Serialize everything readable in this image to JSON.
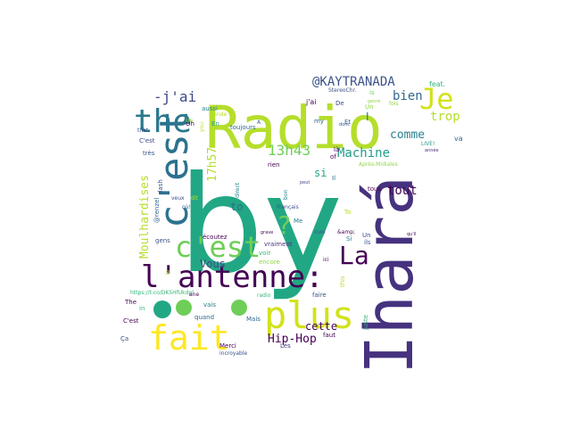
{
  "words": [
    {
      "text": "by",
      "color": "#22a784"
    },
    {
      "text": "Radio",
      "color": "#b5de2b"
    },
    {
      "text": "Ihará",
      "color": "#46327e"
    },
    {
      "text": "l'antenne:",
      "color": "#440154"
    },
    {
      "text": "plus",
      "color": "#d2e21b"
    },
    {
      "text": "c'est",
      "color": "#2c728e"
    },
    {
      "text": "the",
      "color": "#2a788e"
    },
    {
      "text": "fait",
      "color": "#fde725"
    },
    {
      "text": "c'est",
      "color": "#6ece58"
    },
    {
      "text": "Je",
      "color": "#d2e21b"
    },
    {
      "text": "La",
      "color": "#440154"
    },
    {
      "text": "?",
      "color": "#6ece58"
    },
    {
      "text": "-j'ai",
      "color": "#3e4989"
    },
    {
      "text": "@KAYTRANADA",
      "color": "#3b528b"
    },
    {
      "text": "bien",
      "color": "#31688e"
    },
    {
      "text": "trop",
      "color": "#b5de2b"
    },
    {
      "text": "13h43",
      "color": "#6ece58"
    },
    {
      "text": "Machine",
      "color": "#1f9e89"
    },
    {
      "text": "tout",
      "color": "#440154"
    },
    {
      "text": "comme",
      "color": "#26828e"
    },
    {
      "text": "Moulhardises",
      "color": "#b5de2b"
    },
    {
      "text": "17h57",
      "color": "#b5de2b"
    },
    {
      "text": "Vous",
      "color": "#3e4989"
    },
    {
      "text": "Hip-Hop",
      "color": "#440154"
    },
    {
      "text": "cette",
      "color": "#440154"
    },
    {
      "text": "to",
      "color": "#31688e"
    },
    {
      "text": "si",
      "color": "#22a784"
    },
    {
      "text": "I",
      "color": "#2a788e"
    },
    {
      "text": "feat.",
      "color": "#35b779"
    },
    {
      "text": "va",
      "color": "#31688e"
    },
    {
      "text": "j'ai",
      "color": "#440154"
    },
    {
      "text": "is",
      "color": "#6ece58"
    },
    {
      "text": "De",
      "color": "#3e4989"
    },
    {
      "text": "Et",
      "color": "#31688e"
    },
    {
      "text": "StereoChr.",
      "color": "#3b528b"
    },
    {
      "text": "Un",
      "color": "#8fd744"
    },
    {
      "text": "En",
      "color": "#1f9e89"
    },
    {
      "text": "aussi",
      "color": "#26828e"
    },
    {
      "text": "C'est",
      "color": "#3e4989"
    },
    {
      "text": "très",
      "color": "#3b528b"
    },
    {
      "text": "toujours",
      "color": "#31688e"
    },
    {
      "text": "rien",
      "color": "#440154"
    },
    {
      "text": "Il",
      "color": "#31688e"
    },
    {
      "text": "Après-Midiales",
      "color": "#8fd744"
    },
    {
      "text": "Me",
      "color": "#26828e"
    },
    {
      "text": "@renzel",
      "color": "#31688e"
    },
    {
      "text": "dash",
      "color": "#3b528b"
    },
    {
      "text": "écoutez",
      "color": "#440154"
    },
    {
      "text": "voir",
      "color": "#35b779"
    },
    {
      "text": "encore",
      "color": "#8fd744"
    },
    {
      "text": "vraiment",
      "color": "#46327e"
    },
    {
      "text": "gens",
      "color": "#3b528b"
    },
    {
      "text": "The",
      "color": "#440154"
    },
    {
      "text": "C'est",
      "color": "#440154"
    },
    {
      "text": "quand",
      "color": "#31688e"
    },
    {
      "text": "vais",
      "color": "#26828e"
    },
    {
      "text": "radio",
      "color": "#35b779"
    },
    {
      "text": "faire",
      "color": "#3b528b"
    },
    {
      "text": "Mais",
      "color": "#31688e"
    },
    {
      "text": "Merci",
      "color": "#440154"
    },
    {
      "text": "Les",
      "color": "#46327e"
    },
    {
      "text": "faut",
      "color": "#440154"
    },
    {
      "text": "juste",
      "color": "#35b779"
    },
    {
      "text": "this",
      "color": "#b5de2b"
    },
    {
      "text": "Si",
      "color": "#26828e"
    },
    {
      "text": "ils",
      "color": "#3b528b"
    },
    {
      "text": "Un",
      "color": "#3e4989"
    },
    {
      "text": "tous",
      "color": "#440154"
    },
    {
      "text": "To",
      "color": "#b5de2b"
    },
    {
      "text": "&amp;",
      "color": "#440154"
    },
    {
      "text": "Ça",
      "color": "#3b528b"
    },
    {
      "text": "in",
      "color": "#35b779"
    },
    {
      "text": "my",
      "color": "#31688e"
    },
    {
      "text": "of",
      "color": "#440154"
    },
    {
      "text": "là",
      "color": "#440154"
    },
    {
      "text": "bon",
      "color": "#26828e"
    },
    {
      "text": "cuoi",
      "color": "#3b528b"
    },
    {
      "text": "ane",
      "color": "#440154"
    },
    {
      "text": "Oh",
      "color": "#440154"
    },
    {
      "text": "that",
      "color": "#3b528b"
    },
    {
      "text": "you",
      "color": "#b5de2b"
    },
    {
      "text": "dit",
      "color": "#b5de2b"
    },
    {
      "text": "veux",
      "color": "#3e4989"
    },
    {
      "text": "direct",
      "color": "#26828e"
    },
    {
      "text": "LIVE!",
      "color": "#1f9e89"
    },
    {
      "text": "incroyable",
      "color": "#3b528b"
    },
    {
      "text": "Français",
      "color": "#3b528b"
    },
    {
      "text": "https://t.co/DK5HfUkdpl",
      "color": "#35b779"
    },
    {
      "text": "grave",
      "color": "#440154"
    },
    {
      "text": "peut",
      "color": "#3e4989"
    },
    {
      "text": "le",
      "color": "#b5de2b"
    },
    {
      "text": "fois",
      "color": "#8fd744"
    },
    {
      "text": "genre",
      "color": "#8fd744"
    },
    {
      "text": "année",
      "color": "#46327e"
    },
    {
      "text": "qu'il",
      "color": "#440154"
    },
    {
      "text": "Monde",
      "color": "#b5de2b"
    },
    {
      "text": "où!",
      "color": "#31688e"
    },
    {
      "text": "Un",
      "color": "#8fd744"
    },
    {
      "text": "A",
      "color": "#31688e"
    },
    {
      "text": "ici",
      "color": "#440154"
    },
    {
      "text": "donc",
      "color": "#3b528b"
    }
  ],
  "dots": [
    {
      "color": "#22a784"
    },
    {
      "color": "#6ece58"
    },
    {
      "color": "#6ece58"
    }
  ]
}
